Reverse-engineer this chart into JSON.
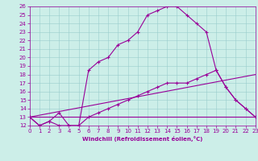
{
  "xlabel": "Windchill (Refroidissement éolien,°C)",
  "xlim": [
    0,
    23
  ],
  "ylim": [
    12,
    26
  ],
  "xticks": [
    0,
    1,
    2,
    3,
    4,
    5,
    6,
    7,
    8,
    9,
    10,
    11,
    12,
    13,
    14,
    15,
    16,
    17,
    18,
    19,
    20,
    21,
    22,
    23
  ],
  "yticks": [
    12,
    13,
    14,
    15,
    16,
    17,
    18,
    19,
    20,
    21,
    22,
    23,
    24,
    25,
    26
  ],
  "bg_color": "#cceee8",
  "line_color": "#990099",
  "grid_color": "#99cccc",
  "lines": [
    {
      "x": [
        0,
        1,
        2,
        3,
        4,
        5,
        6,
        7,
        8,
        9,
        10,
        11,
        12,
        13,
        14,
        15,
        16,
        17,
        18,
        19,
        20,
        21,
        22,
        23
      ],
      "y": [
        13.0,
        12.0,
        12.5,
        13.5,
        12.0,
        12.0,
        18.5,
        19.5,
        20.0,
        21.5,
        22.0,
        23.0,
        25.0,
        25.5,
        26.0,
        26.0,
        25.0,
        24.0,
        23.0,
        18.5,
        16.5,
        15.0,
        14.0,
        13.0
      ],
      "marker": true
    },
    {
      "x": [
        0,
        1,
        2,
        3,
        4,
        5,
        6,
        7,
        8,
        9,
        10,
        11,
        12,
        13,
        14,
        15,
        16,
        17,
        18,
        19,
        20,
        21,
        22,
        23
      ],
      "y": [
        13.0,
        12.0,
        12.5,
        12.0,
        12.0,
        12.0,
        13.0,
        13.5,
        14.0,
        14.5,
        15.0,
        15.5,
        16.0,
        16.5,
        17.0,
        17.0,
        17.0,
        17.5,
        18.0,
        18.5,
        16.5,
        15.0,
        14.0,
        13.0
      ],
      "marker": true
    },
    {
      "x": [
        0,
        23
      ],
      "y": [
        13.0,
        18.0
      ],
      "marker": false
    },
    {
      "x": [
        0,
        23
      ],
      "y": [
        13.0,
        13.0
      ],
      "marker": false
    }
  ],
  "tick_fontsize": 5,
  "xlabel_fontsize": 5,
  "linewidth": 0.8,
  "markersize": 3
}
